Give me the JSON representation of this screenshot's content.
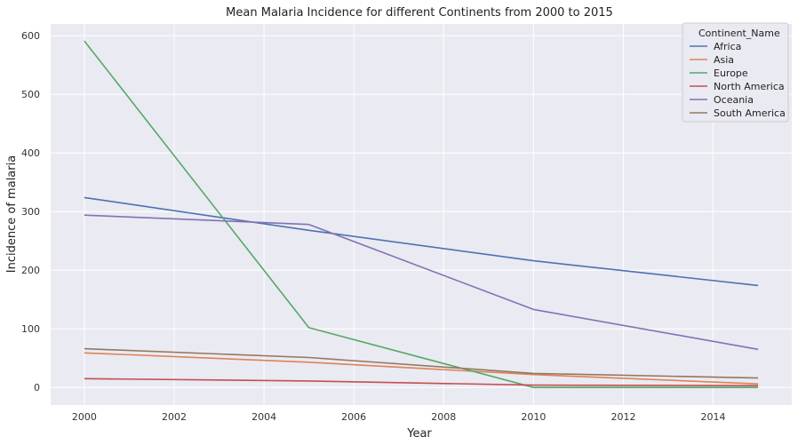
{
  "chart_data": {
    "type": "line",
    "title": "Mean Malaria Incidence for different Continents from 2000 to 2015",
    "xlabel": "Year",
    "ylabel": "Incidence of malaria",
    "x": [
      2000,
      2005,
      2010,
      2015
    ],
    "xlim": [
      1999.25,
      2015.75
    ],
    "ylim": [
      -30,
      620
    ],
    "xticks": [
      2000,
      2002,
      2004,
      2006,
      2008,
      2010,
      2012,
      2014
    ],
    "yticks": [
      0,
      100,
      200,
      300,
      400,
      500,
      600
    ],
    "grid": true,
    "background": "#eaeaf2",
    "legend": {
      "title": "Continent_Name",
      "placement": "top-right"
    },
    "series": [
      {
        "name": "Africa",
        "color": "#4c72b0",
        "values": [
          324,
          268,
          216,
          174
        ]
      },
      {
        "name": "Asia",
        "color": "#dd8452",
        "values": [
          59,
          43,
          22,
          6
        ]
      },
      {
        "name": "Europe",
        "color": "#55a868",
        "values": [
          591,
          102,
          0,
          0
        ]
      },
      {
        "name": "North America",
        "color": "#c44e52",
        "values": [
          15,
          11,
          4,
          3
        ]
      },
      {
        "name": "Oceania",
        "color": "#8172b3",
        "values": [
          294,
          278,
          133,
          65
        ]
      },
      {
        "name": "South America",
        "color": "#937860",
        "values": [
          66,
          51,
          24,
          16
        ]
      }
    ]
  }
}
